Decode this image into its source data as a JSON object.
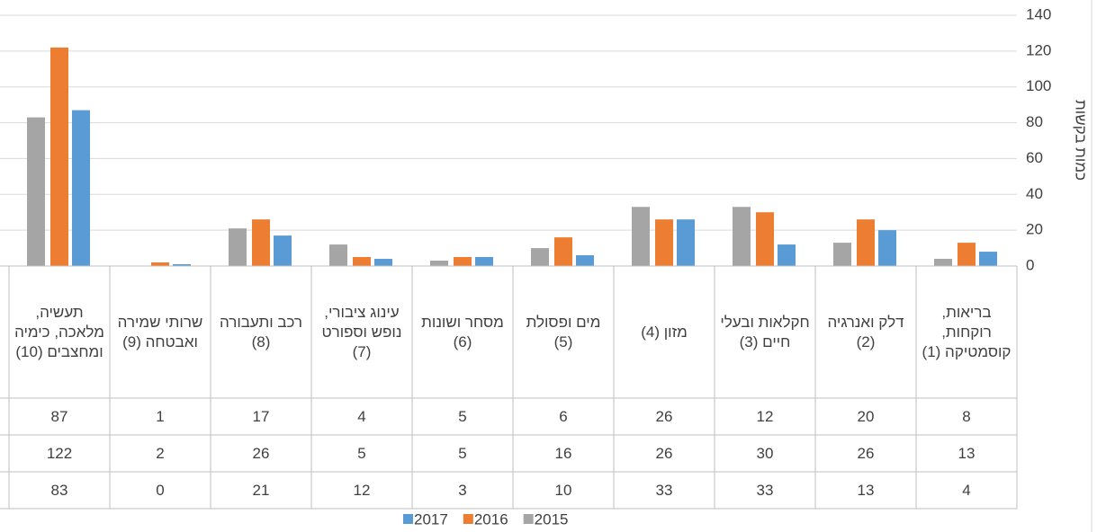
{
  "chart_data": {
    "type": "bar",
    "y_label": "כמות בקשות",
    "categories": [
      "בריאות, רוקחות, קוסמטיקה (1)",
      "דלק ואנרגיה (2)",
      "חקלאות ובעלי חיים (3)",
      "מזון (4)",
      "מים ופסולת (5)",
      "מסחר ושונות (6)",
      "עינוג ציבורי, נופש וספורט (7)",
      "רכב ותעבורה (8)",
      "שרותי שמירה ואבטחה (9)",
      "תעשיה, מלאכה, כימיה ומחצבים (10)"
    ],
    "series": [
      {
        "name": "2017",
        "color": "#5b9bd5",
        "values": [
          8,
          20,
          12,
          26,
          6,
          5,
          4,
          17,
          1,
          87
        ]
      },
      {
        "name": "2016",
        "color": "#ed7d31",
        "values": [
          13,
          26,
          30,
          26,
          16,
          5,
          5,
          26,
          2,
          122
        ]
      },
      {
        "name": "2015",
        "color": "#a5a5a5",
        "values": [
          4,
          13,
          33,
          33,
          10,
          3,
          12,
          21,
          0,
          83
        ]
      }
    ],
    "ylim": [
      0,
      140
    ],
    "yticks": [
      0,
      20,
      40,
      60,
      80,
      100,
      120,
      140
    ],
    "grid": true,
    "legend": "bottom",
    "data_table": true
  }
}
